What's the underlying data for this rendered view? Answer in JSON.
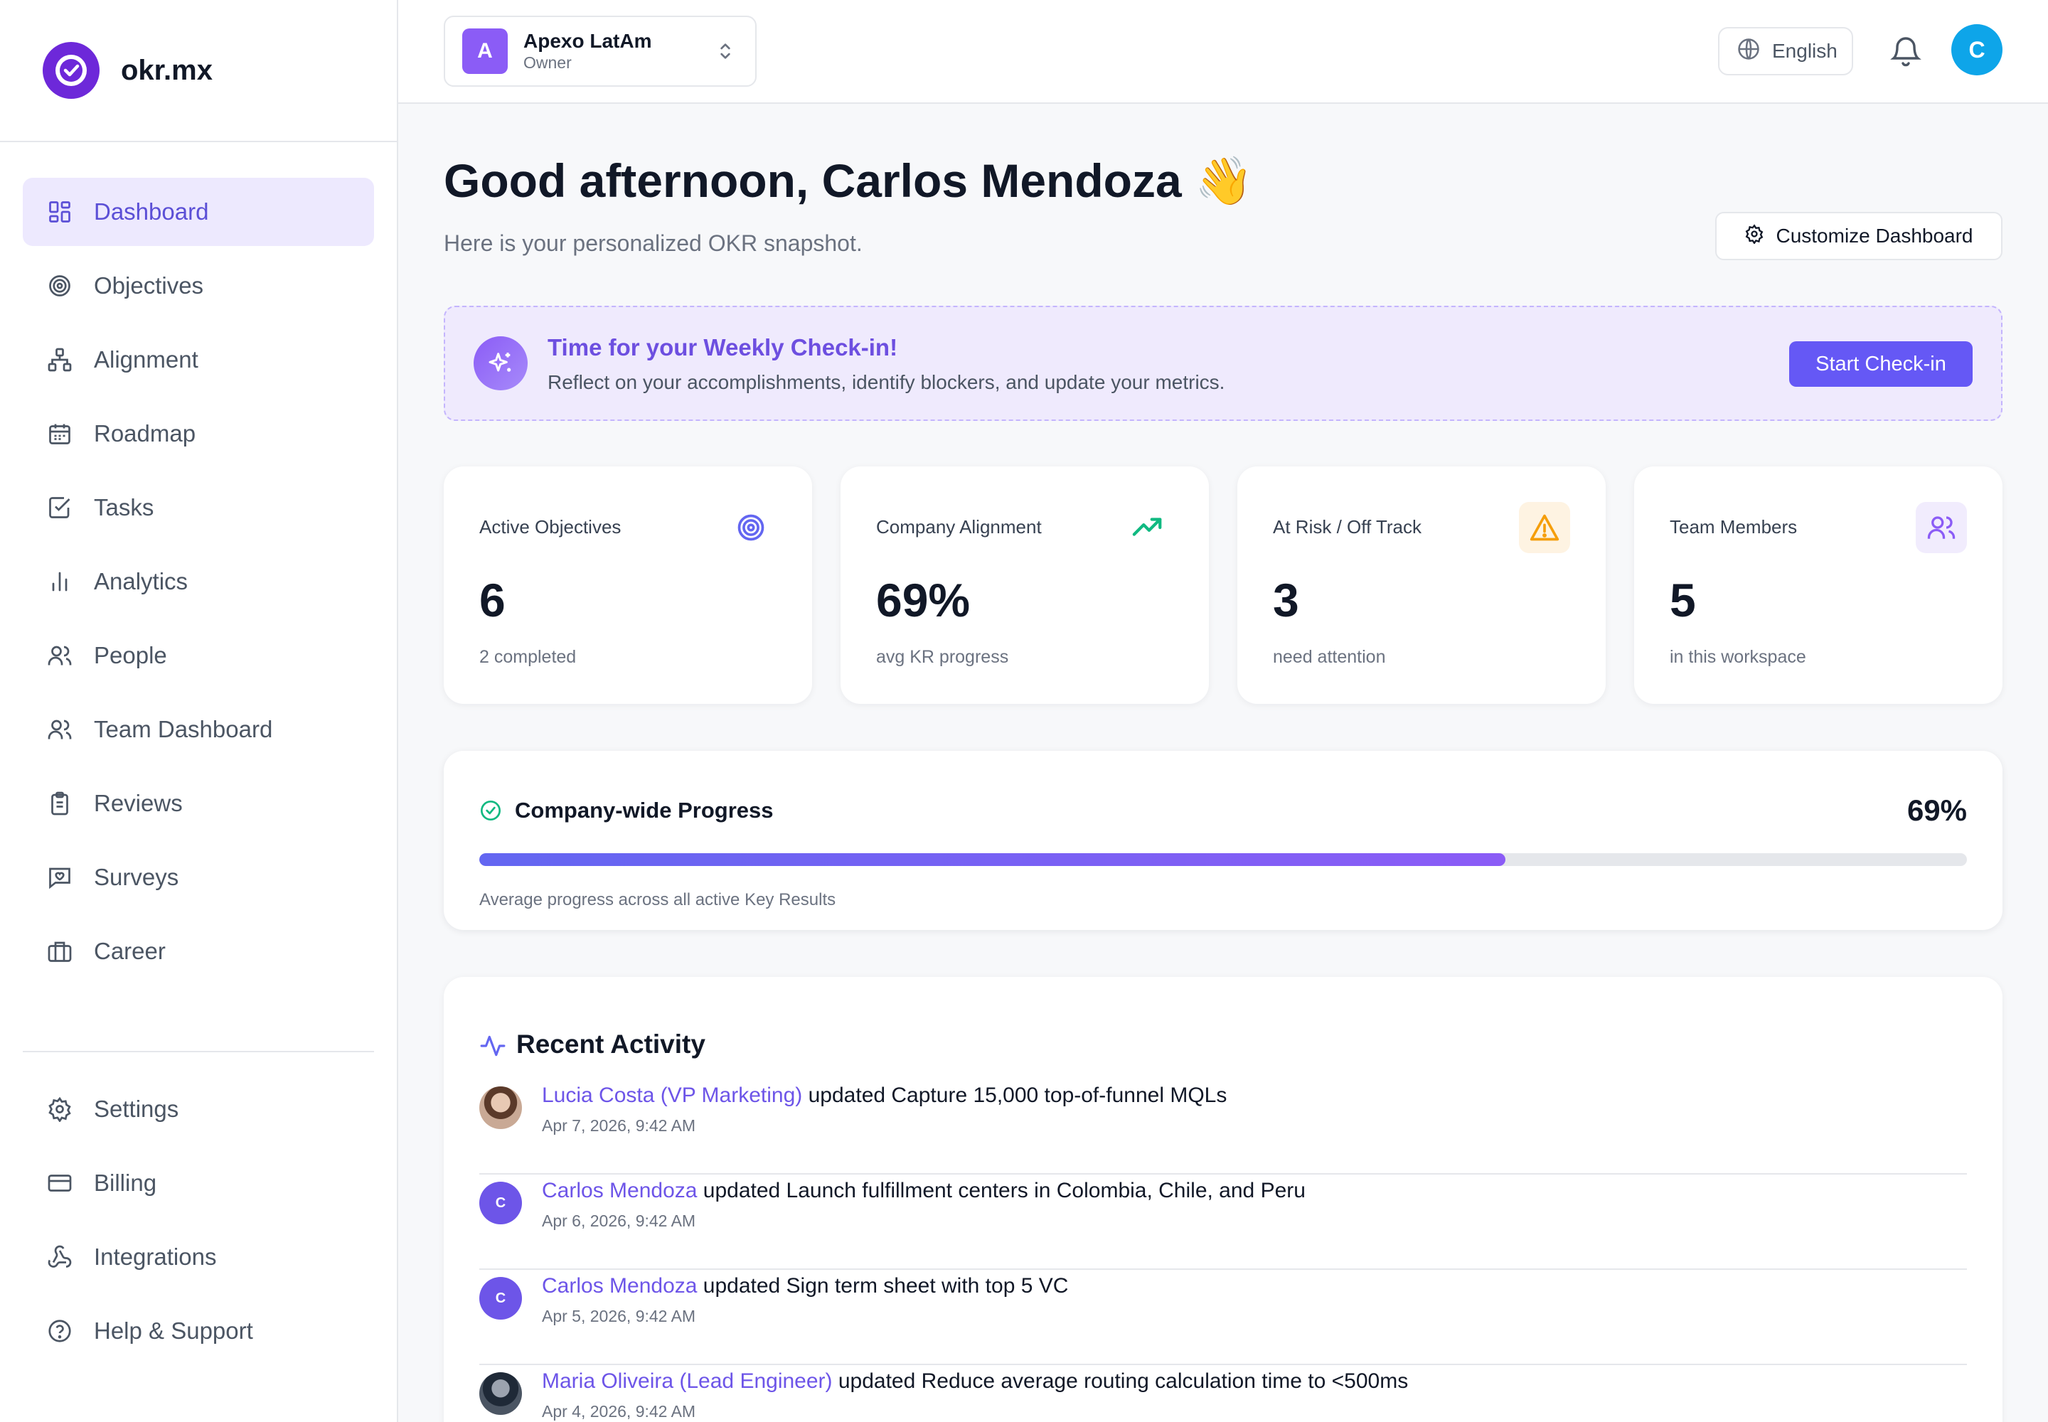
{
  "brand": {
    "name": "okr.mx"
  },
  "sidebar": {
    "items": [
      {
        "label": "Dashboard",
        "icon": "dashboard-grid-icon",
        "active": true
      },
      {
        "label": "Objectives",
        "icon": "target-icon"
      },
      {
        "label": "Alignment",
        "icon": "hierarchy-icon"
      },
      {
        "label": "Roadmap",
        "icon": "calendar-icon"
      },
      {
        "label": "Tasks",
        "icon": "checkbox-icon"
      },
      {
        "label": "Analytics",
        "icon": "bar-chart-icon"
      },
      {
        "label": "People",
        "icon": "users-icon"
      },
      {
        "label": "Team Dashboard",
        "icon": "users-icon"
      },
      {
        "label": "Reviews",
        "icon": "clipboard-icon"
      },
      {
        "label": "Surveys",
        "icon": "message-heart-icon"
      },
      {
        "label": "Career",
        "icon": "briefcase-icon"
      }
    ],
    "bottom_items": [
      {
        "label": "Settings",
        "icon": "gear-icon"
      },
      {
        "label": "Billing",
        "icon": "credit-card-icon"
      },
      {
        "label": "Integrations",
        "icon": "webhook-icon"
      },
      {
        "label": "Help & Support",
        "icon": "help-circle-icon"
      }
    ]
  },
  "header": {
    "workspace": {
      "initial": "A",
      "name": "Apexo LatAm",
      "role": "Owner"
    },
    "language": "English",
    "user_initial": "C"
  },
  "main": {
    "greeting": "Good afternoon, Carlos Mendoza 👋",
    "subtitle": "Here is your personalized OKR snapshot.",
    "customize_label": "Customize Dashboard",
    "checkin": {
      "title": "Time for your Weekly Check-in!",
      "description": "Reflect on your accomplishments, identify blockers, and update your metrics.",
      "button": "Start Check-in"
    },
    "stats": [
      {
        "label": "Active Objectives",
        "value": "6",
        "sub": "2 completed",
        "icon": "target-icon",
        "color": "#6366f1"
      },
      {
        "label": "Company Alignment",
        "value": "69%",
        "sub": "avg KR progress",
        "icon": "trending-up-icon",
        "color": "#10b981"
      },
      {
        "label": "At Risk / Off Track",
        "value": "3",
        "sub": "need attention",
        "icon": "warning-triangle-icon",
        "color": "#f59e0b"
      },
      {
        "label": "Team Members",
        "value": "5",
        "sub": "in this workspace",
        "icon": "users-icon",
        "color": "#8b5cf6"
      }
    ],
    "progress": {
      "title": "Company-wide Progress",
      "percent_label": "69%",
      "value": 0.69,
      "caption": "Average progress across all active Key Results"
    },
    "activity": {
      "title": "Recent Activity",
      "items": [
        {
          "user": "Lucia Costa (VP Marketing)",
          "text": " updated Capture 15,000 top-of-funnel MQLs",
          "time": "Apr 7, 2026, 9:42 AM",
          "avatar": "photo"
        },
        {
          "user": "Carlos Mendoza",
          "text": " updated Launch fulfillment centers in Colombia, Chile, and Peru",
          "time": "Apr 6, 2026, 9:42 AM",
          "avatar": "C"
        },
        {
          "user": "Carlos Mendoza",
          "text": " updated Sign term sheet with top 5 VC",
          "time": "Apr 5, 2026, 9:42 AM",
          "avatar": "C"
        },
        {
          "user": "Maria Oliveira (Lead Engineer)",
          "text": " updated Reduce average routing calculation time to <500ms",
          "time": "Apr 4, 2026, 9:42 AM",
          "avatar": "photo"
        }
      ]
    }
  },
  "colors": {
    "accent": "#6558f5",
    "active_nav_bg": "#ede9fe",
    "user_avatar": "#0ea5e9"
  }
}
